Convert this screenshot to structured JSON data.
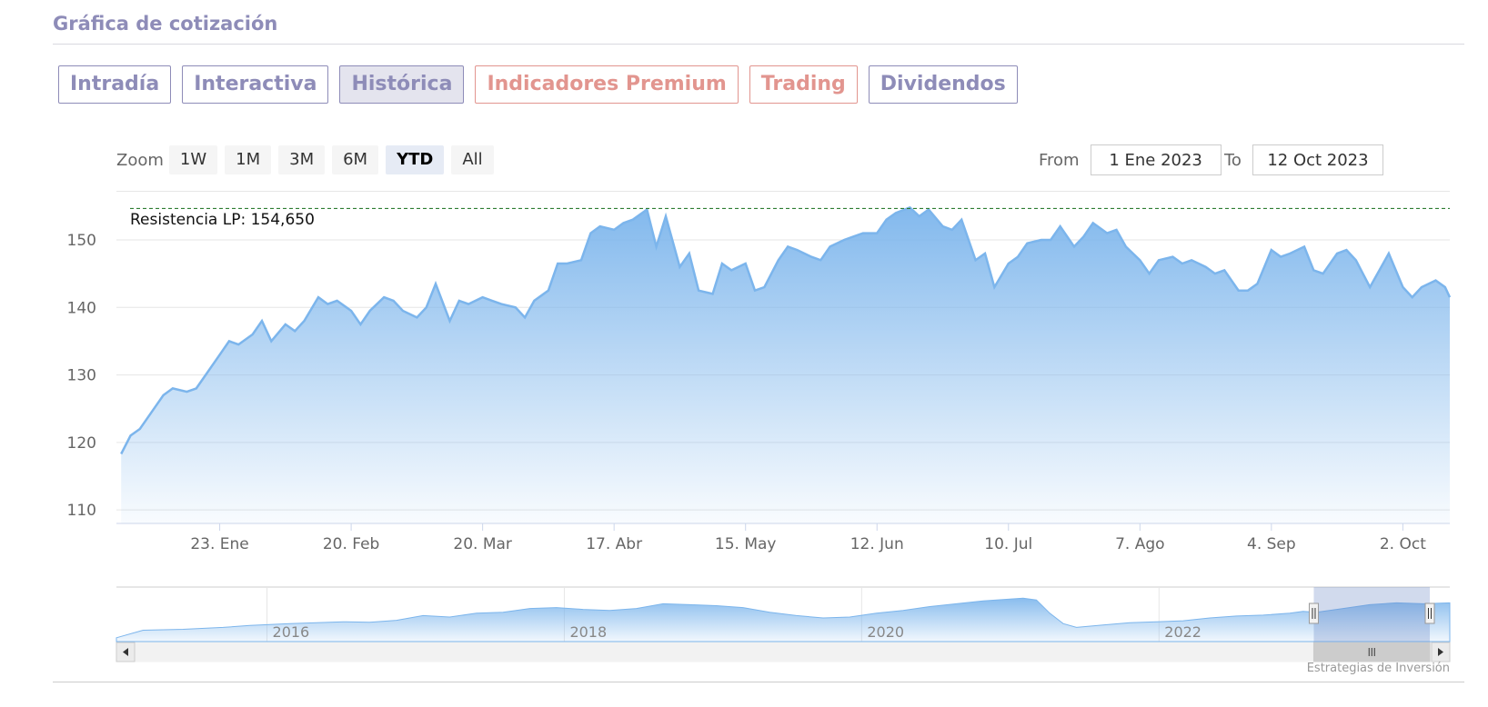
{
  "header": {
    "title": "Gráfica de cotización"
  },
  "tabs": [
    {
      "label": "Intradía",
      "active": false,
      "premium": false
    },
    {
      "label": "Interactiva",
      "active": false,
      "premium": false
    },
    {
      "label": "Histórica",
      "active": true,
      "premium": false
    },
    {
      "label": "Indicadores Premium",
      "active": false,
      "premium": true
    },
    {
      "label": "Trading",
      "active": false,
      "premium": true
    },
    {
      "label": "Dividendos",
      "active": false,
      "premium": false
    }
  ],
  "range_selector": {
    "zoom_label": "Zoom",
    "buttons": [
      "1W",
      "1M",
      "3M",
      "6M",
      "YTD",
      "All"
    ],
    "selected": "YTD",
    "from_label": "From",
    "from_value": "1 Ene 2023",
    "to_label": "To",
    "to_value": "12 Oct 2023"
  },
  "colors": {
    "accent": "#8e8cb8",
    "premium": "#e2958f",
    "series": "#7cb5ec",
    "resistance": "#2e7d32"
  },
  "chart_data": {
    "type": "area",
    "ylim": [
      108,
      157
    ],
    "yticks": [
      110,
      120,
      130,
      140,
      150
    ],
    "x_start": "2023-01-01",
    "x_end": "2023-10-12",
    "xticks": [
      {
        "date": "2023-01-23",
        "label": "23. Ene"
      },
      {
        "date": "2023-02-20",
        "label": "20. Feb"
      },
      {
        "date": "2023-03-20",
        "label": "20. Mar"
      },
      {
        "date": "2023-04-17",
        "label": "17. Abr"
      },
      {
        "date": "2023-05-15",
        "label": "15. May"
      },
      {
        "date": "2023-06-12",
        "label": "12. Jun"
      },
      {
        "date": "2023-07-10",
        "label": "10. Jul"
      },
      {
        "date": "2023-08-07",
        "label": "7. Ago"
      },
      {
        "date": "2023-09-04",
        "label": "4. Sep"
      },
      {
        "date": "2023-10-02",
        "label": "2. Oct"
      }
    ],
    "series": [
      {
        "points": [
          [
            "2023-01-02",
            118.3
          ],
          [
            "2023-01-04",
            121.0
          ],
          [
            "2023-01-06",
            122.0
          ],
          [
            "2023-01-09",
            125.0
          ],
          [
            "2023-01-11",
            127.0
          ],
          [
            "2023-01-13",
            128.0
          ],
          [
            "2023-01-16",
            127.5
          ],
          [
            "2023-01-18",
            128.0
          ],
          [
            "2023-01-20",
            130.0
          ],
          [
            "2023-01-23",
            133.0
          ],
          [
            "2023-01-25",
            135.0
          ],
          [
            "2023-01-27",
            134.5
          ],
          [
            "2023-01-30",
            136.0
          ],
          [
            "2023-02-01",
            138.0
          ],
          [
            "2023-02-03",
            135.0
          ],
          [
            "2023-02-06",
            137.5
          ],
          [
            "2023-02-08",
            136.5
          ],
          [
            "2023-02-10",
            138.0
          ],
          [
            "2023-02-13",
            141.5
          ],
          [
            "2023-02-15",
            140.5
          ],
          [
            "2023-02-17",
            141.0
          ],
          [
            "2023-02-20",
            139.5
          ],
          [
            "2023-02-22",
            137.5
          ],
          [
            "2023-02-24",
            139.5
          ],
          [
            "2023-02-27",
            141.5
          ],
          [
            "2023-03-01",
            141.0
          ],
          [
            "2023-03-03",
            139.5
          ],
          [
            "2023-03-06",
            138.5
          ],
          [
            "2023-03-08",
            140.0
          ],
          [
            "2023-03-10",
            143.5
          ],
          [
            "2023-03-13",
            138.0
          ],
          [
            "2023-03-15",
            141.0
          ],
          [
            "2023-03-17",
            140.5
          ],
          [
            "2023-03-20",
            141.5
          ],
          [
            "2023-03-22",
            141.0
          ],
          [
            "2023-03-24",
            140.5
          ],
          [
            "2023-03-27",
            140.0
          ],
          [
            "2023-03-29",
            138.5
          ],
          [
            "2023-03-31",
            141.0
          ],
          [
            "2023-04-03",
            142.5
          ],
          [
            "2023-04-05",
            146.5
          ],
          [
            "2023-04-07",
            146.5
          ],
          [
            "2023-04-10",
            147.0
          ],
          [
            "2023-04-12",
            151.0
          ],
          [
            "2023-04-14",
            152.0
          ],
          [
            "2023-04-17",
            151.5
          ],
          [
            "2023-04-19",
            152.5
          ],
          [
            "2023-04-21",
            153.0
          ],
          [
            "2023-04-24",
            154.5
          ],
          [
            "2023-04-26",
            149.0
          ],
          [
            "2023-04-28",
            153.5
          ],
          [
            "2023-05-01",
            146.0
          ],
          [
            "2023-05-03",
            148.0
          ],
          [
            "2023-05-05",
            142.5
          ],
          [
            "2023-05-08",
            142.0
          ],
          [
            "2023-05-10",
            146.5
          ],
          [
            "2023-05-12",
            145.5
          ],
          [
            "2023-05-15",
            146.5
          ],
          [
            "2023-05-17",
            142.5
          ],
          [
            "2023-05-19",
            143.0
          ],
          [
            "2023-05-22",
            147.0
          ],
          [
            "2023-05-24",
            149.0
          ],
          [
            "2023-05-26",
            148.5
          ],
          [
            "2023-05-29",
            147.5
          ],
          [
            "2023-05-31",
            147.0
          ],
          [
            "2023-06-02",
            149.0
          ],
          [
            "2023-06-05",
            150.0
          ],
          [
            "2023-06-07",
            150.5
          ],
          [
            "2023-06-09",
            151.0
          ],
          [
            "2023-06-12",
            151.0
          ],
          [
            "2023-06-14",
            153.0
          ],
          [
            "2023-06-16",
            154.0
          ],
          [
            "2023-06-19",
            154.8
          ],
          [
            "2023-06-21",
            153.5
          ],
          [
            "2023-06-23",
            154.5
          ],
          [
            "2023-06-26",
            152.0
          ],
          [
            "2023-06-28",
            151.5
          ],
          [
            "2023-06-30",
            153.0
          ],
          [
            "2023-07-03",
            147.0
          ],
          [
            "2023-07-05",
            148.0
          ],
          [
            "2023-07-07",
            143.0
          ],
          [
            "2023-07-10",
            146.5
          ],
          [
            "2023-07-12",
            147.5
          ],
          [
            "2023-07-14",
            149.5
          ],
          [
            "2023-07-17",
            150.0
          ],
          [
            "2023-07-19",
            150.0
          ],
          [
            "2023-07-21",
            152.0
          ],
          [
            "2023-07-24",
            149.0
          ],
          [
            "2023-07-26",
            150.5
          ],
          [
            "2023-07-28",
            152.5
          ],
          [
            "2023-07-31",
            151.0
          ],
          [
            "2023-08-02",
            151.5
          ],
          [
            "2023-08-04",
            149.0
          ],
          [
            "2023-08-07",
            147.0
          ],
          [
            "2023-08-09",
            145.0
          ],
          [
            "2023-08-11",
            147.0
          ],
          [
            "2023-08-14",
            147.5
          ],
          [
            "2023-08-16",
            146.5
          ],
          [
            "2023-08-18",
            147.0
          ],
          [
            "2023-08-21",
            146.0
          ],
          [
            "2023-08-23",
            145.0
          ],
          [
            "2023-08-25",
            145.5
          ],
          [
            "2023-08-28",
            142.5
          ],
          [
            "2023-08-30",
            142.5
          ],
          [
            "2023-09-01",
            143.5
          ],
          [
            "2023-09-04",
            148.5
          ],
          [
            "2023-09-06",
            147.5
          ],
          [
            "2023-09-08",
            148.0
          ],
          [
            "2023-09-11",
            149.0
          ],
          [
            "2023-09-13",
            145.5
          ],
          [
            "2023-09-15",
            145.0
          ],
          [
            "2023-09-18",
            148.0
          ],
          [
            "2023-09-20",
            148.5
          ],
          [
            "2023-09-22",
            147.0
          ],
          [
            "2023-09-25",
            143.0
          ],
          [
            "2023-09-27",
            145.5
          ],
          [
            "2023-09-29",
            148.0
          ],
          [
            "2023-10-02",
            143.0
          ],
          [
            "2023-10-04",
            141.5
          ],
          [
            "2023-10-06",
            143.0
          ],
          [
            "2023-10-09",
            144.0
          ],
          [
            "2023-10-11",
            143.0
          ],
          [
            "2023-10-12",
            141.5
          ]
        ]
      }
    ],
    "resistance": {
      "label": "Resistencia LP: 154,650",
      "value": 154.65
    }
  },
  "navigator": {
    "labels": [
      "2016",
      "2018",
      "2020",
      "2022"
    ],
    "points": [
      [
        0,
        0.08
      ],
      [
        0.02,
        0.24
      ],
      [
        0.05,
        0.26
      ],
      [
        0.08,
        0.3
      ],
      [
        0.1,
        0.34
      ],
      [
        0.13,
        0.38
      ],
      [
        0.15,
        0.4
      ],
      [
        0.17,
        0.42
      ],
      [
        0.19,
        0.41
      ],
      [
        0.21,
        0.45
      ],
      [
        0.23,
        0.55
      ],
      [
        0.25,
        0.52
      ],
      [
        0.27,
        0.6
      ],
      [
        0.29,
        0.62
      ],
      [
        0.31,
        0.7
      ],
      [
        0.33,
        0.72
      ],
      [
        0.35,
        0.68
      ],
      [
        0.37,
        0.66
      ],
      [
        0.39,
        0.7
      ],
      [
        0.41,
        0.8
      ],
      [
        0.43,
        0.78
      ],
      [
        0.45,
        0.76
      ],
      [
        0.47,
        0.72
      ],
      [
        0.49,
        0.62
      ],
      [
        0.51,
        0.55
      ],
      [
        0.53,
        0.5
      ],
      [
        0.55,
        0.52
      ],
      [
        0.57,
        0.6
      ],
      [
        0.59,
        0.66
      ],
      [
        0.61,
        0.74
      ],
      [
        0.63,
        0.8
      ],
      [
        0.65,
        0.86
      ],
      [
        0.67,
        0.9
      ],
      [
        0.68,
        0.92
      ],
      [
        0.69,
        0.88
      ],
      [
        0.7,
        0.6
      ],
      [
        0.71,
        0.38
      ],
      [
        0.72,
        0.3
      ],
      [
        0.74,
        0.35
      ],
      [
        0.76,
        0.4
      ],
      [
        0.78,
        0.42
      ],
      [
        0.8,
        0.44
      ],
      [
        0.82,
        0.5
      ],
      [
        0.84,
        0.54
      ],
      [
        0.86,
        0.56
      ],
      [
        0.88,
        0.6
      ],
      [
        0.89,
        0.64
      ],
      [
        0.9,
        0.62
      ],
      [
        0.92,
        0.7
      ],
      [
        0.94,
        0.78
      ],
      [
        0.96,
        0.82
      ],
      [
        0.98,
        0.8
      ],
      [
        1,
        0.82
      ]
    ],
    "window_start": 0.898,
    "window_end": 0.985
  },
  "credit": "Estrategias de Inversión"
}
